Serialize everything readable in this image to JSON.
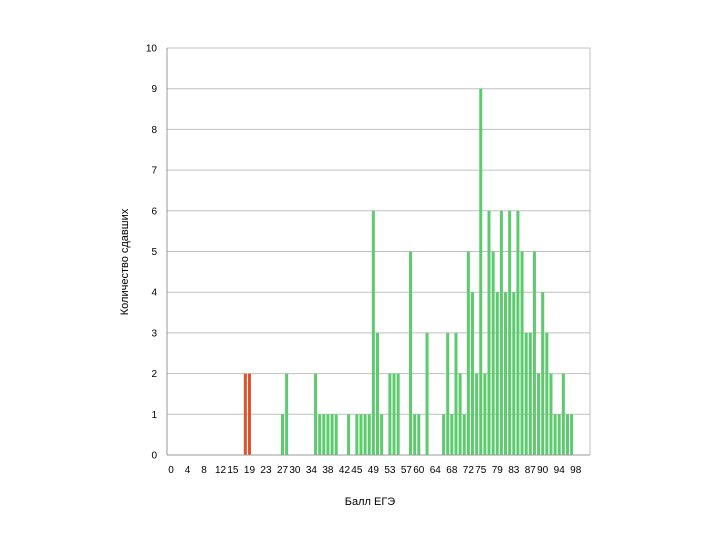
{
  "chart_data": {
    "type": "bar",
    "xlabel": "Балл ЕГЭ",
    "ylabel": "Количество сдавших",
    "ylim": [
      0,
      10
    ],
    "yticks": [
      "0",
      "1",
      "2",
      "3",
      "4",
      "5",
      "6",
      "7",
      "8",
      "9",
      "10"
    ],
    "xlim": [
      0,
      100
    ],
    "xticks": [
      {
        "value": 0,
        "label": "0"
      },
      {
        "value": 4,
        "label": "4"
      },
      {
        "value": 8,
        "label": "8"
      },
      {
        "value": 12,
        "label": "12"
      },
      {
        "value": 15,
        "label": "15"
      },
      {
        "value": 19,
        "label": "19"
      },
      {
        "value": 23,
        "label": "23"
      },
      {
        "value": 27,
        "label": "27"
      },
      {
        "value": 30,
        "label": "30"
      },
      {
        "value": 34,
        "label": "34"
      },
      {
        "value": 38,
        "label": "38"
      },
      {
        "value": 42,
        "label": "42"
      },
      {
        "value": 45,
        "label": "45"
      },
      {
        "value": 49,
        "label": "49"
      },
      {
        "value": 53,
        "label": "53"
      },
      {
        "value": 57,
        "label": "57"
      },
      {
        "value": 60,
        "label": "60"
      },
      {
        "value": 64,
        "label": "64"
      },
      {
        "value": 68,
        "label": "68"
      },
      {
        "value": 72,
        "label": "72"
      },
      {
        "value": 75,
        "label": "75"
      },
      {
        "value": 79,
        "label": "79"
      },
      {
        "value": 83,
        "label": "83"
      },
      {
        "value": 87,
        "label": "87"
      },
      {
        "value": 90,
        "label": "90"
      },
      {
        "value": 94,
        "label": "94"
      },
      {
        "value": 98,
        "label": "98"
      }
    ],
    "grid": true,
    "highlight_threshold": 19,
    "colors": {
      "bar": "#5ccb6e",
      "below_threshold": "#e0522c",
      "grid": "#c0c0c0",
      "axis": "#999999"
    },
    "scores": [
      18,
      19,
      27,
      28,
      35,
      36,
      37,
      38,
      39,
      40,
      43,
      45,
      46,
      47,
      48,
      49,
      50,
      51,
      53,
      54,
      55,
      58,
      59,
      60,
      62,
      66,
      67,
      68,
      69,
      70,
      71,
      72,
      73,
      74,
      75,
      76,
      77,
      78,
      79,
      80,
      81,
      82,
      83,
      84,
      85,
      86,
      87,
      88,
      89,
      90,
      91,
      92,
      93,
      94,
      95,
      96,
      97
    ],
    "values": [
      2,
      2,
      1,
      2,
      2,
      1,
      1,
      1,
      1,
      1,
      1,
      1,
      1,
      1,
      1,
      6,
      3,
      1,
      2,
      2,
      2,
      5,
      1,
      1,
      3,
      1,
      3,
      1,
      3,
      2,
      1,
      5,
      4,
      2,
      9,
      2,
      6,
      5,
      4,
      6,
      4,
      6,
      4,
      6,
      5,
      3,
      3,
      5,
      2,
      4,
      3,
      2,
      1,
      1,
      2,
      1,
      1
    ]
  }
}
